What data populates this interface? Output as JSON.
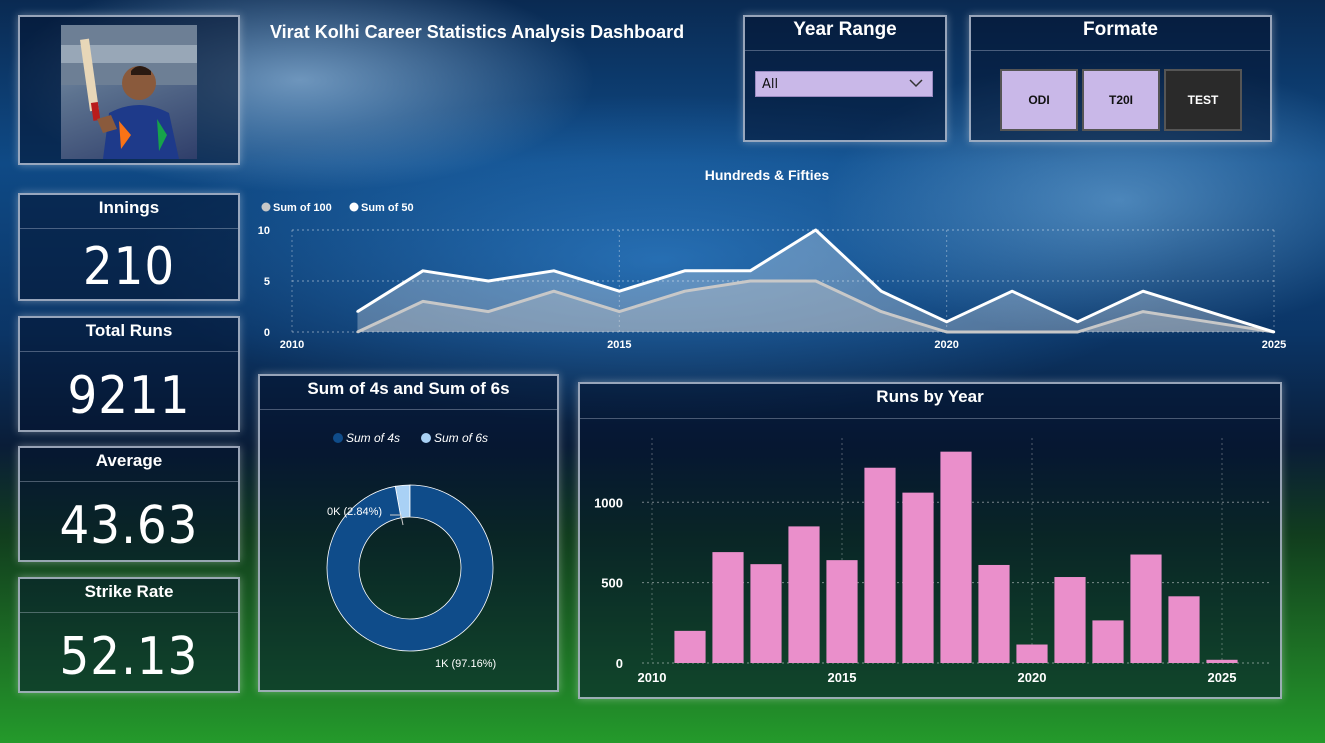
{
  "header": {
    "title": "Virat Kolhi Career Statistics Analysis Dashboard"
  },
  "year_range": {
    "title": "Year Range",
    "selected": "All"
  },
  "format": {
    "title": "Formate",
    "buttons": [
      "ODI",
      "T20I",
      "TEST"
    ]
  },
  "kpis": {
    "innings": {
      "label": "Innings",
      "value": "210"
    },
    "total_runs": {
      "label": "Total Runs",
      "value": "9211"
    },
    "average": {
      "label": "Average",
      "value": "43.63"
    },
    "strike_rate": {
      "label": "Strike Rate",
      "value": "52.13"
    }
  },
  "colors": {
    "accent_button": "#c9b8e8",
    "selected_button": "#2a2a2a",
    "bar": "#ea8fcb",
    "donut_4s": "#0f4c8a",
    "donut_6s": "#a9d1f5",
    "line_100": "#c8c8c8",
    "line_50": "#ffffff"
  },
  "chart_data": [
    {
      "type": "area",
      "title": "Hundreds & Fifties",
      "legend_position": "top-left",
      "series": [
        {
          "name": "Sum of 100",
          "x": [
            2011,
            2012,
            2013,
            2014,
            2015,
            2016,
            2017,
            2018,
            2019,
            2020,
            2021,
            2022,
            2023,
            2024,
            2025
          ],
          "values": [
            0,
            3,
            2,
            4,
            2,
            4,
            5,
            5,
            2,
            0,
            0,
            0,
            2,
            1,
            0
          ]
        },
        {
          "name": "Sum of 50",
          "x": [
            2011,
            2012,
            2013,
            2014,
            2015,
            2016,
            2017,
            2018,
            2019,
            2020,
            2021,
            2022,
            2023,
            2024,
            2025
          ],
          "values": [
            2,
            6,
            5,
            6,
            4,
            6,
            6,
            10,
            4,
            1,
            4,
            1,
            4,
            2,
            0
          ]
        }
      ],
      "x_ticks": [
        "2010",
        "2015",
        "2020",
        "2025"
      ],
      "y_ticks": [
        "0",
        "5",
        "10"
      ],
      "xlim": [
        2010,
        2025
      ],
      "ylim": [
        0,
        10
      ],
      "grid": true
    },
    {
      "type": "pie",
      "title": "Sum of 4s and Sum of 6s",
      "legend_position": "top-center",
      "categories": [
        "Sum of 4s",
        "Sum of 6s"
      ],
      "values": [
        97.16,
        2.84
      ],
      "labels": [
        "1K (97.16%)",
        "0K (2.84%)"
      ]
    },
    {
      "type": "bar",
      "title": "Runs by Year",
      "x": [
        2011,
        2012,
        2013,
        2014,
        2015,
        2016,
        2017,
        2018,
        2019,
        2020,
        2021,
        2022,
        2023,
        2024,
        2025
      ],
      "values": [
        200,
        690,
        615,
        850,
        640,
        1215,
        1060,
        1315,
        610,
        115,
        535,
        265,
        675,
        415,
        20
      ],
      "x_ticks": [
        "2010",
        "2015",
        "2020",
        "2025"
      ],
      "y_ticks": [
        "0",
        "500",
        "1000"
      ],
      "xlim": [
        2010,
        2025
      ],
      "ylim": [
        0,
        1400
      ],
      "grid": true
    }
  ]
}
